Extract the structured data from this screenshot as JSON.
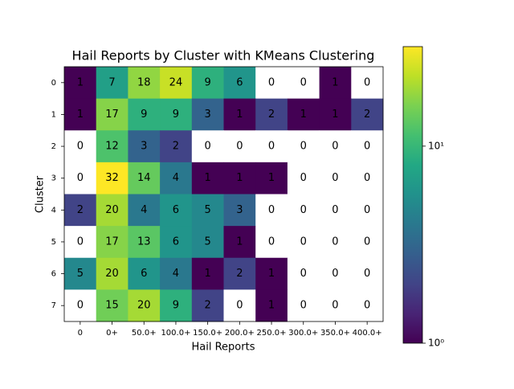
{
  "chart_data": {
    "type": "heatmap",
    "title": "Hail Reports by Cluster with KMeans Clustering",
    "xlabel": "Hail Reports",
    "ylabel": "Cluster",
    "categories": [
      "0",
      "0+",
      "50.0+",
      "100.0+",
      "150.0+",
      "200.0+",
      "250.0+",
      "300.0+",
      "350.0+",
      "400.0+"
    ],
    "rows": [
      "0",
      "1",
      "2",
      "3",
      "4",
      "5",
      "6",
      "7"
    ],
    "values": [
      [
        1,
        7,
        18,
        24,
        9,
        6,
        0,
        0,
        1,
        0
      ],
      [
        1,
        17,
        9,
        9,
        3,
        1,
        2,
        1,
        1,
        2
      ],
      [
        0,
        12,
        3,
        2,
        0,
        0,
        0,
        0,
        0,
        0
      ],
      [
        0,
        32,
        14,
        4,
        1,
        1,
        1,
        0,
        0,
        0
      ],
      [
        2,
        20,
        4,
        6,
        5,
        3,
        0,
        0,
        0,
        0
      ],
      [
        0,
        17,
        13,
        6,
        5,
        1,
        0,
        0,
        0,
        0
      ],
      [
        5,
        20,
        6,
        4,
        1,
        2,
        1,
        0,
        0,
        0
      ],
      [
        0,
        15,
        20,
        9,
        2,
        0,
        1,
        0,
        0,
        0
      ]
    ],
    "colormap": "viridis",
    "log_scale": true,
    "clim": [
      1,
      32
    ],
    "cticks": [
      {
        "value": 1,
        "label": "10⁰"
      },
      {
        "value": 10,
        "label": "10¹"
      }
    ]
  }
}
